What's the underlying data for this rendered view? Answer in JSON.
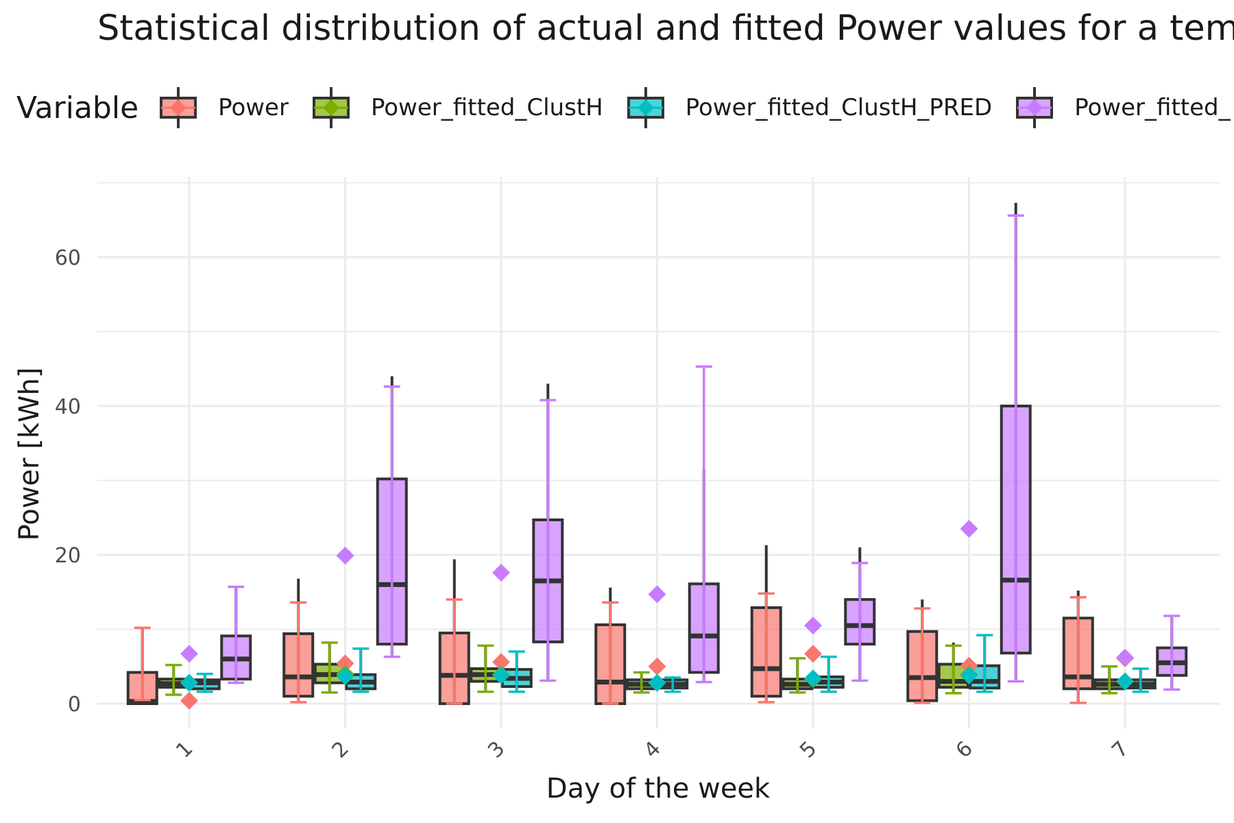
{
  "chart_data": {
    "type": "box",
    "title": "Statistical distribution of actual and fitted Power values for a tem",
    "xlabel": "Day of the week",
    "ylabel": "Power [kWh]",
    "ylim": [
      -3.5,
      70
    ],
    "yticks": [
      0,
      20,
      40,
      60
    ],
    "categories": [
      "1",
      "2",
      "3",
      "4",
      "5",
      "6",
      "7"
    ],
    "legend": {
      "title": "Variable",
      "position": "top"
    },
    "grid": true,
    "series": [
      {
        "name": "Power",
        "color": "#F8766D",
        "boxes": [
          {
            "lower": 0.5,
            "q1": 0,
            "median": 0.3,
            "q3": 4.2,
            "upper": 10.2,
            "whisker_top": 10.2,
            "mean": 0.4
          },
          {
            "lower": 0.2,
            "q1": 1.0,
            "median": 3.6,
            "q3": 9.4,
            "upper": 13.6,
            "whisker_top": 16.8,
            "mean": 5.4
          },
          {
            "lower": 0.0,
            "q1": 0.0,
            "median": 3.8,
            "q3": 9.5,
            "upper": 14.0,
            "whisker_top": 19.4,
            "mean": 5.6
          },
          {
            "lower": 0.0,
            "q1": 0.0,
            "median": 2.9,
            "q3": 10.6,
            "upper": 13.6,
            "whisker_top": 15.6,
            "mean": 5.0
          },
          {
            "lower": 0.2,
            "q1": 1.0,
            "median": 4.7,
            "q3": 12.9,
            "upper": 14.8,
            "whisker_top": 21.3,
            "mean": 6.7
          },
          {
            "lower": 0.1,
            "q1": 0.4,
            "median": 3.5,
            "q3": 9.7,
            "upper": 12.8,
            "whisker_top": 14.0,
            "mean": 5.1
          },
          {
            "lower": 0.1,
            "q1": 2.0,
            "median": 3.6,
            "q3": 11.5,
            "upper": 14.3,
            "whisker_top": 15.2,
            "mean": 6.1
          }
        ]
      },
      {
        "name": "Power_fitted_ClustH",
        "color": "#7CAE00",
        "boxes": [
          {
            "lower": 1.2,
            "q1": 2.2,
            "median": 2.7,
            "q3": 3.3,
            "upper": 5.2,
            "whisker_top": 5.2,
            "mean": 2.8
          },
          {
            "lower": 1.5,
            "q1": 2.8,
            "median": 3.9,
            "q3": 5.3,
            "upper": 8.2,
            "whisker_top": 8.2,
            "mean": 4.0
          },
          {
            "lower": 1.6,
            "q1": 3.0,
            "median": 3.9,
            "q3": 4.7,
            "upper": 7.8,
            "whisker_top": 7.8,
            "mean": 3.9
          },
          {
            "lower": 1.5,
            "q1": 2.0,
            "median": 2.6,
            "q3": 3.2,
            "upper": 4.2,
            "whisker_top": 4.2,
            "mean": 2.8
          },
          {
            "lower": 1.5,
            "q1": 2.0,
            "median": 2.6,
            "q3": 3.3,
            "upper": 6.1,
            "whisker_top": 6.1,
            "mean": 3.3
          },
          {
            "lower": 1.4,
            "q1": 2.2,
            "median": 3.0,
            "q3": 5.3,
            "upper": 7.8,
            "whisker_top": 8.2,
            "mean": 3.9
          },
          {
            "lower": 1.4,
            "q1": 2.0,
            "median": 2.6,
            "q3": 3.2,
            "upper": 5.0,
            "whisker_top": 5.0,
            "mean": 3.0
          }
        ]
      },
      {
        "name": "Power_fitted_ClustH_PRED",
        "color": "#00BFC4",
        "boxes": [
          {
            "lower": 1.6,
            "q1": 2.0,
            "median": 2.8,
            "q3": 3.2,
            "upper": 4.0,
            "whisker_top": 4.0,
            "mean": 2.8
          },
          {
            "lower": 1.6,
            "q1": 2.0,
            "median": 2.9,
            "q3": 3.9,
            "upper": 7.4,
            "whisker_top": 7.4,
            "mean": 3.7
          },
          {
            "lower": 1.6,
            "q1": 2.3,
            "median": 3.4,
            "q3": 4.6,
            "upper": 7.0,
            "whisker_top": 7.0,
            "mean": 3.8
          },
          {
            "lower": 1.6,
            "q1": 2.1,
            "median": 2.6,
            "q3": 3.2,
            "upper": 3.5,
            "whisker_top": 3.5,
            "mean": 2.8
          },
          {
            "lower": 1.6,
            "q1": 2.2,
            "median": 2.9,
            "q3": 3.6,
            "upper": 6.3,
            "whisker_top": 6.3,
            "mean": 3.4
          },
          {
            "lower": 1.6,
            "q1": 2.1,
            "median": 3.0,
            "q3": 5.1,
            "upper": 9.2,
            "whisker_top": 9.2,
            "mean": 3.8
          },
          {
            "lower": 1.6,
            "q1": 2.1,
            "median": 2.6,
            "q3": 3.2,
            "upper": 4.7,
            "whisker_top": 4.7,
            "mean": 3.0
          }
        ]
      },
      {
        "name": "Power_fitted_",
        "color": "#C77CFF",
        "boxes": [
          {
            "lower": 2.8,
            "q1": 3.3,
            "median": 6.0,
            "q3": 9.1,
            "upper": 15.7,
            "whisker_top": 15.7,
            "mean": 6.7
          },
          {
            "lower": 6.3,
            "q1": 8.0,
            "median": 16.0,
            "q3": 30.2,
            "upper": 42.6,
            "whisker_top": 44.0,
            "mean": 19.9
          },
          {
            "lower": 3.1,
            "q1": 8.3,
            "median": 16.5,
            "q3": 24.7,
            "upper": 40.8,
            "whisker_top": 43.0,
            "mean": 17.6
          },
          {
            "lower": 2.9,
            "q1": 4.2,
            "median": 9.1,
            "q3": 16.1,
            "upper": 45.3,
            "whisker_top": 31.5,
            "mean": 14.7
          },
          {
            "lower": 3.1,
            "q1": 8.0,
            "median": 10.5,
            "q3": 14.0,
            "upper": 18.9,
            "whisker_top": 21.0,
            "mean": 10.5
          },
          {
            "lower": 3.0,
            "q1": 6.8,
            "median": 16.6,
            "q3": 40.0,
            "upper": 65.6,
            "whisker_top": 67.3,
            "mean": 23.5
          },
          {
            "lower": 1.9,
            "q1": 3.8,
            "median": 5.5,
            "q3": 7.5,
            "upper": 11.8,
            "whisker_top": 11.8,
            "mean": 6.2
          }
        ]
      }
    ]
  }
}
